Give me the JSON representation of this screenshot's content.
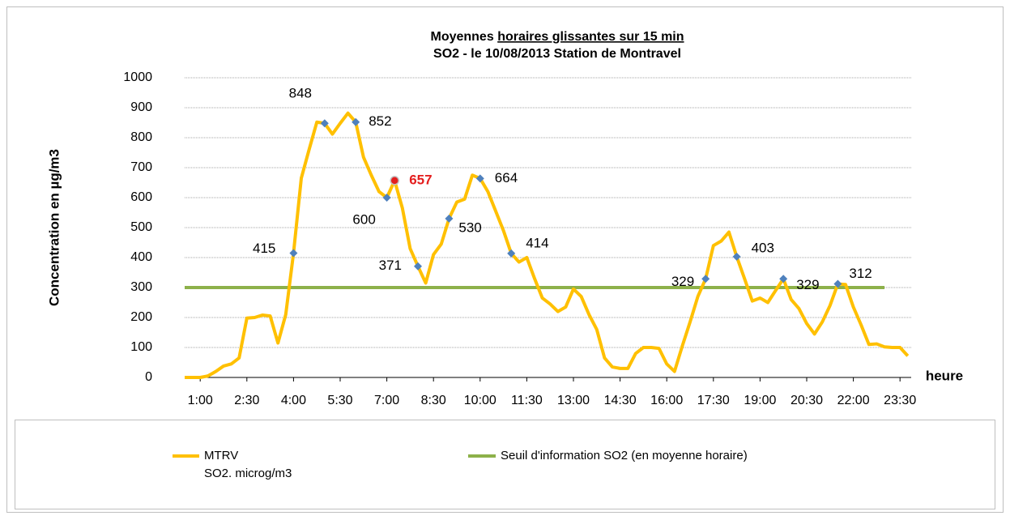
{
  "chart_data": {
    "type": "line",
    "title": [
      "Moyennes",
      "horaires glissantes sur 15 min"
    ],
    "subtitle": "SO2 - le 10/08/2013 Station de Montravel",
    "ylabel": "Concentration en µg/m3",
    "xlabel": "heure",
    "categories": [
      null,
      null,
      "1:00",
      null,
      null,
      null,
      null,
      null,
      "2:30",
      null,
      null,
      null,
      null,
      null,
      "4:00",
      null,
      null,
      null,
      null,
      null,
      "5:30",
      null,
      null,
      null,
      null,
      null,
      "7:00",
      null,
      null,
      null,
      null,
      null,
      "8:30",
      null,
      null,
      null,
      null,
      null,
      "10:00",
      null,
      null,
      null,
      null,
      null,
      "11:30",
      null,
      null,
      null,
      null,
      null,
      "13:00",
      null,
      null,
      null,
      null,
      null,
      "14:30",
      null,
      null,
      null,
      null,
      null,
      "16:00",
      null,
      null,
      null,
      null,
      null,
      "17:30",
      null,
      null,
      null,
      null,
      null,
      "19:00",
      null,
      null,
      null,
      null,
      null,
      "20:30",
      null,
      null,
      null,
      null,
      null,
      "22:00",
      null,
      null,
      null,
      null,
      null,
      "23:30",
      null
    ],
    "series": [
      {
        "name": "MTRV\nSO2. microg/m3",
        "color": "#ffc000",
        "values": [
          0,
          0,
          0,
          5,
          20,
          38,
          45,
          65,
          198,
          200,
          208,
          205,
          115,
          210,
          415,
          665,
          760,
          852,
          848,
          812,
          848,
          882,
          852,
          735,
          675,
          620,
          600,
          657,
          565,
          430,
          371,
          315,
          410,
          445,
          530,
          585,
          595,
          675,
          664,
          620,
          555,
          490,
          414,
          385,
          400,
          330,
          265,
          245,
          220,
          235,
          295,
          270,
          210,
          160,
          65,
          35,
          30,
          30,
          80,
          100,
          100,
          97,
          45,
          20,
          105,
          185,
          270,
          329,
          440,
          455,
          485,
          403,
          330,
          255,
          265,
          250,
          290,
          329,
          260,
          230,
          180,
          145,
          185,
          240,
          312,
          310,
          235,
          175,
          110,
          112,
          102,
          100,
          100,
          72
        ],
        "value_labels": [
          null,
          null,
          null,
          null,
          null,
          null,
          null,
          null,
          null,
          null,
          null,
          null,
          null,
          null,
          "415",
          null,
          null,
          null,
          "848",
          null,
          null,
          null,
          "852",
          null,
          null,
          null,
          "600",
          "657",
          null,
          null,
          "371",
          null,
          null,
          null,
          "530",
          null,
          null,
          null,
          "664",
          null,
          null,
          null,
          "414",
          null,
          null,
          null,
          null,
          null,
          null,
          null,
          null,
          null,
          null,
          null,
          null,
          null,
          null,
          null,
          null,
          null,
          null,
          null,
          null,
          null,
          null,
          null,
          null,
          "329",
          null,
          null,
          null,
          "403",
          null,
          null,
          null,
          null,
          null,
          "329",
          null,
          null,
          null,
          null,
          null,
          null,
          "312",
          null,
          null,
          null,
          null,
          null,
          null,
          null,
          null,
          null
        ],
        "marker_color": "#4f81bd",
        "highlight": 27,
        "highlight_color": "#e41e1e"
      },
      {
        "name": "Seuil d'information SO2 (en moyenne horaire)",
        "color": "#8db14a",
        "values": [
          300,
          300,
          300,
          300,
          300,
          300,
          300,
          300,
          300,
          300,
          300,
          300,
          300,
          300,
          300,
          300,
          300,
          300,
          300,
          300,
          300,
          300,
          300,
          300,
          300,
          300,
          300,
          300,
          300,
          300,
          300,
          300,
          300,
          300,
          300,
          300,
          300,
          300,
          300,
          300,
          300,
          300,
          300,
          300,
          300,
          300,
          300,
          300,
          300,
          300,
          300,
          300,
          300,
          300,
          300,
          300,
          300,
          300,
          300,
          300,
          300,
          300,
          300,
          300,
          300,
          300,
          300,
          300,
          300,
          300,
          300,
          300,
          300,
          300,
          300,
          300,
          300,
          300,
          300,
          300,
          300,
          300,
          300,
          300,
          300,
          300,
          300,
          300,
          300,
          300,
          300,
          null,
          null,
          null
        ]
      }
    ],
    "ylim": [
      0,
      1000
    ],
    "yticks": [
      0,
      100,
      200,
      300,
      400,
      500,
      600,
      700,
      800,
      900,
      1000
    ],
    "grid": true
  }
}
